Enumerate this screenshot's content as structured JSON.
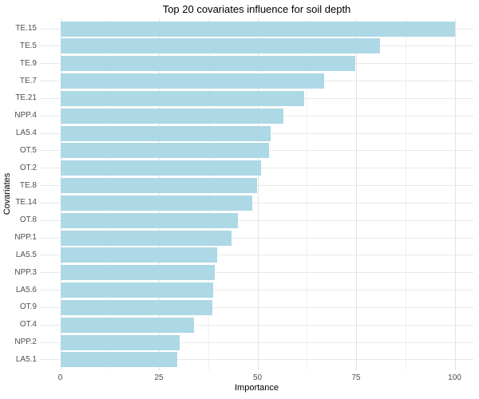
{
  "chart_data": {
    "type": "bar",
    "orientation": "horizontal",
    "title": "Top 20 covariates influence for soil depth",
    "xlabel": "Importance",
    "ylabel": "Covariates",
    "categories": [
      "TE.15",
      "TE.5",
      "TE.9",
      "TE.7",
      "TE.21",
      "NPP.4",
      "LA5.4",
      "OT.5",
      "OT.2",
      "TE.8",
      "TE.14",
      "OT.8",
      "NPP.1",
      "LA5.5",
      "NPP.3",
      "LA5.6",
      "OT.9",
      "OT.4",
      "NPP.2",
      "LA5.1"
    ],
    "values": [
      100,
      81,
      74.8,
      66.9,
      61.8,
      56.5,
      53.3,
      52.9,
      50.9,
      49.9,
      48.7,
      45,
      43.4,
      39.8,
      39.2,
      38.8,
      38.6,
      33.9,
      30.3,
      29.6
    ],
    "x_ticks": [
      0,
      25,
      50,
      75,
      100
    ],
    "xlim": [
      0,
      100
    ],
    "grid": true,
    "legend_position": "none",
    "bar_color": "#ADD8E6",
    "background_color": "#FFFFFF",
    "major_grid_color": "#E4E4E4",
    "minor_grid_color": "#F1F1F1",
    "tick_label_color": "#4D4D4D",
    "title_color": "#000000"
  }
}
